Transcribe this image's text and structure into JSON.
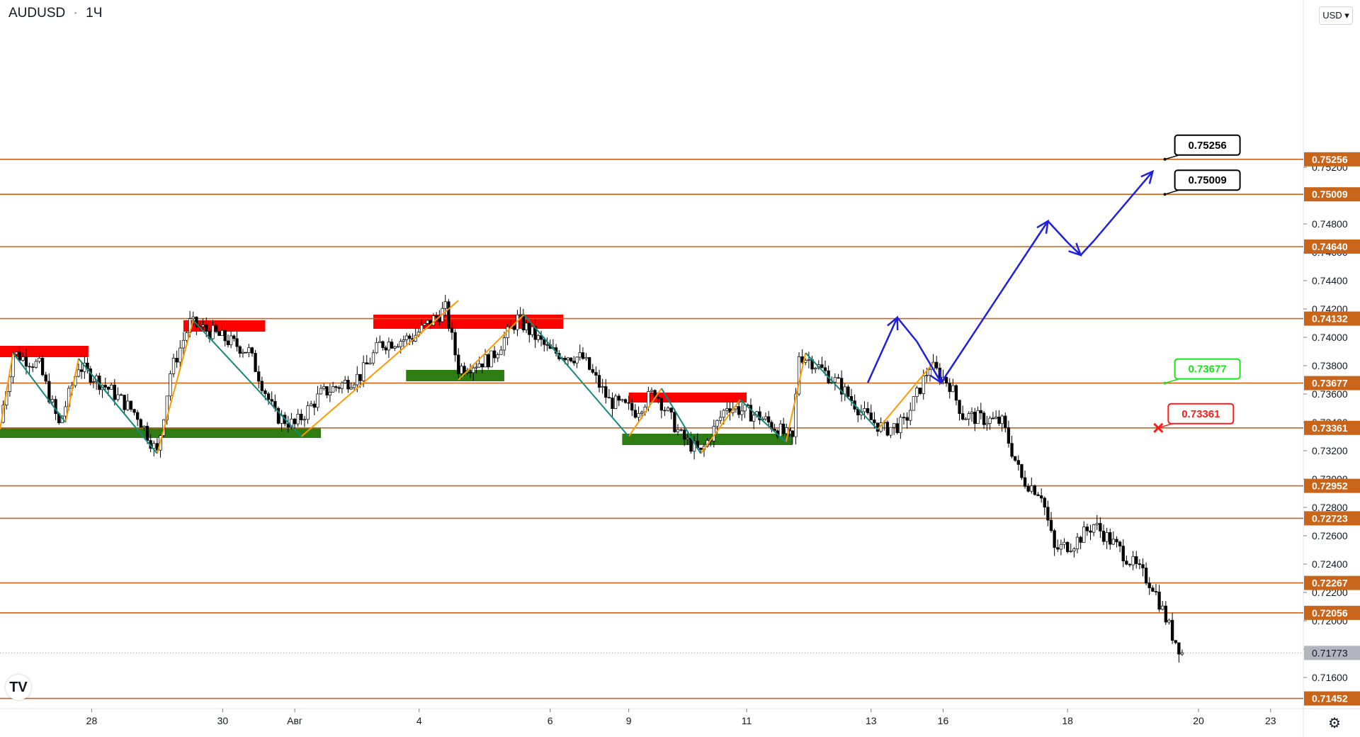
{
  "header": {
    "symbol": "AUDUSD",
    "interval": "1Ч",
    "dot": "·"
  },
  "currency": "USD",
  "logo": "TV",
  "icons": {
    "settings": "gear-icon",
    "currency_dropdown": "chevron-down-icon",
    "logo": "tradingview-logo-icon"
  },
  "colors": {
    "level_line": "#c9651b",
    "level_fill": "#c9651b",
    "current_price_fill": "#b2b5be",
    "resistance_zone": "#ff0000",
    "support_zone": "#2e7d13",
    "zigzag_up": "#ff9800",
    "zigzag_down": "#13887e",
    "forecast_arrow": "#1f1fe0",
    "callout_green": "#1ce01c",
    "callout_red": "#ff1a1a",
    "callout_black": "#000000"
  },
  "chart_data": {
    "type": "candlestick",
    "symbol": "AUDUSD",
    "timeframe": "1H",
    "ylim": [
      0.7138,
      0.7638
    ],
    "y_ticks": [
      0.752,
      0.748,
      0.746,
      0.744,
      0.742,
      0.74,
      0.738,
      0.736,
      0.734,
      0.732,
      0.73,
      0.728,
      0.726,
      0.724,
      0.722,
      0.72,
      0.718,
      0.716
    ],
    "y_tick_labels": [
      "0.75200",
      "0.74800",
      "0.74600",
      "0.74400",
      "0.74200",
      "0.74000",
      "0.73800",
      "0.73600",
      "0.73400",
      "0.73200",
      "0.73000",
      "0.72800",
      "0.72600",
      "0.72400",
      "0.72200",
      "0.72000",
      "0.71800",
      "0.71600"
    ],
    "x_ticks": [
      {
        "label": "28",
        "x": 0.0
      },
      {
        "label": "30",
        "x": 2.0
      },
      {
        "label": "Авг",
        "x": 3.1
      },
      {
        "label": "4",
        "x": 5.0
      },
      {
        "label": "6",
        "x": 7.0
      },
      {
        "label": "9",
        "x": 8.2
      },
      {
        "label": "11",
        "x": 10.0
      },
      {
        "label": "13",
        "x": 11.9
      },
      {
        "label": "16",
        "x": 13.0
      },
      {
        "label": "18",
        "x": 14.9
      },
      {
        "label": "20",
        "x": 16.9
      },
      {
        "label": "23",
        "x": 18.0
      }
    ],
    "xlim": [
      -1.4,
      18.5
    ],
    "levels": [
      {
        "value": 0.75256,
        "label": "0.75256"
      },
      {
        "value": 0.75009,
        "label": "0.75009"
      },
      {
        "value": 0.7464,
        "label": "0.74640"
      },
      {
        "value": 0.74132,
        "label": "0.74132"
      },
      {
        "value": 0.73677,
        "label": "0.73677"
      },
      {
        "value": 0.73361,
        "label": "0.73361"
      },
      {
        "value": 0.72952,
        "label": "0.72952"
      },
      {
        "value": 0.72723,
        "label": "0.72723"
      },
      {
        "value": 0.72267,
        "label": "0.72267"
      },
      {
        "value": 0.72056,
        "label": "0.72056"
      },
      {
        "value": 0.71452,
        "label": "0.71452"
      }
    ],
    "current_price": {
      "value": 0.71773,
      "label": "0.71773"
    },
    "price_path": [
      [
        -1.4,
        0.734
      ],
      [
        -1.2,
        0.7389
      ],
      [
        -0.8,
        0.738
      ],
      [
        -0.5,
        0.7338
      ],
      [
        -0.2,
        0.738
      ],
      [
        0.3,
        0.7362
      ],
      [
        0.7,
        0.7345
      ],
      [
        1.0,
        0.7318
      ],
      [
        1.2,
        0.7375
      ],
      [
        1.5,
        0.741
      ],
      [
        1.9,
        0.7402
      ],
      [
        2.4,
        0.739
      ],
      [
        2.8,
        0.7345
      ],
      [
        3.1,
        0.7338
      ],
      [
        3.5,
        0.736
      ],
      [
        4.1,
        0.7373
      ],
      [
        4.4,
        0.7395
      ],
      [
        4.9,
        0.74
      ],
      [
        5.4,
        0.742
      ],
      [
        5.6,
        0.7378
      ],
      [
        6.1,
        0.7385
      ],
      [
        6.5,
        0.7413
      ],
      [
        7.0,
        0.739
      ],
      [
        7.5,
        0.7385
      ],
      [
        7.9,
        0.7355
      ],
      [
        8.3,
        0.7348
      ],
      [
        8.6,
        0.7362
      ],
      [
        9.0,
        0.733
      ],
      [
        9.3,
        0.7318
      ],
      [
        9.7,
        0.7352
      ],
      [
        10.2,
        0.7344
      ],
      [
        10.7,
        0.7328
      ],
      [
        10.8,
        0.7388
      ],
      [
        11.0,
        0.7383
      ],
      [
        11.4,
        0.7367
      ],
      [
        11.8,
        0.7345
      ],
      [
        12.1,
        0.7335
      ],
      [
        12.4,
        0.7339
      ],
      [
        12.8,
        0.738
      ],
      [
        13.1,
        0.7367
      ],
      [
        13.3,
        0.7345
      ],
      [
        13.9,
        0.734
      ],
      [
        14.2,
        0.73
      ],
      [
        14.5,
        0.729
      ],
      [
        14.7,
        0.725
      ],
      [
        15.0,
        0.7255
      ],
      [
        15.3,
        0.7268
      ],
      [
        15.7,
        0.725
      ],
      [
        16.0,
        0.7235
      ],
      [
        16.2,
        0.7225
      ],
      [
        16.5,
        0.719
      ],
      [
        16.65,
        0.71773
      ]
    ],
    "resistance_zones": [
      {
        "x0": -1.4,
        "x1": -0.05,
        "y0": 0.7386,
        "y1": 0.7394
      },
      {
        "x0": 1.4,
        "x1": 2.65,
        "y0": 0.7404,
        "y1": 0.7412
      },
      {
        "x0": 4.3,
        "x1": 7.2,
        "y0": 0.7406,
        "y1": 0.7416
      },
      {
        "x0": 8.2,
        "x1": 10.0,
        "y0": 0.7354,
        "y1": 0.7361
      }
    ],
    "support_zones": [
      {
        "x0": -1.4,
        "x1": 3.5,
        "y0": 0.7329,
        "y1": 0.7336
      },
      {
        "x0": 4.8,
        "x1": 6.3,
        "y0": 0.7369,
        "y1": 0.7377
      },
      {
        "x0": 8.1,
        "x1": 10.7,
        "y0": 0.7324,
        "y1": 0.7332
      }
    ],
    "zigzag_up": [
      [
        [
          -1.4,
          0.7335
        ],
        [
          -1.2,
          0.7389
        ]
      ],
      [
        [
          -0.4,
          0.734
        ],
        [
          -0.2,
          0.7385
        ]
      ],
      [
        [
          1.0,
          0.7318
        ],
        [
          1.55,
          0.7412
        ]
      ],
      [
        [
          3.2,
          0.733
        ],
        [
          5.6,
          0.7426
        ]
      ],
      [
        [
          5.6,
          0.737
        ],
        [
          6.6,
          0.7416
        ]
      ],
      [
        [
          8.2,
          0.733
        ],
        [
          8.7,
          0.7364
        ]
      ],
      [
        [
          9.3,
          0.7318
        ],
        [
          9.9,
          0.7356
        ]
      ],
      [
        [
          10.6,
          0.7326
        ],
        [
          10.9,
          0.7389
        ]
      ],
      [
        [
          12.0,
          0.7335
        ],
        [
          12.85,
          0.7382
        ]
      ]
    ],
    "zigzag_down": [
      [
        [
          -1.2,
          0.7389
        ],
        [
          -0.4,
          0.734
        ]
      ],
      [
        [
          -0.2,
          0.7385
        ],
        [
          1.0,
          0.7318
        ]
      ],
      [
        [
          1.55,
          0.7412
        ],
        [
          3.2,
          0.733
        ]
      ],
      [
        [
          6.6,
          0.7416
        ],
        [
          8.2,
          0.733
        ]
      ],
      [
        [
          8.7,
          0.7364
        ],
        [
          9.3,
          0.7318
        ]
      ],
      [
        [
          9.9,
          0.7356
        ],
        [
          10.6,
          0.7326
        ]
      ],
      [
        [
          10.9,
          0.7389
        ],
        [
          12.0,
          0.7335
        ]
      ]
    ],
    "forecast_path": [
      [
        11.85,
        0.7368
      ],
      [
        12.3,
        0.7414
      ],
      [
        12.6,
        0.7397
      ],
      [
        12.97,
        0.7368
      ],
      [
        14.6,
        0.7482
      ],
      [
        14.9,
        0.7467
      ],
      [
        15.1,
        0.7458
      ],
      [
        15.3,
        0.7468
      ],
      [
        16.2,
        0.7517
      ]
    ],
    "callouts": [
      {
        "label": "0.75256",
        "kind": "black",
        "value": 0.75256,
        "x": 16.3
      },
      {
        "label": "0.75009",
        "kind": "black",
        "value": 0.75009,
        "x": 16.3
      },
      {
        "label": "0.73677",
        "kind": "green",
        "value": 0.73677,
        "x": 16.3
      },
      {
        "label": "0.73361",
        "kind": "red",
        "value": 0.73361,
        "x": 16.2
      }
    ],
    "grid": false,
    "legend": "none"
  }
}
